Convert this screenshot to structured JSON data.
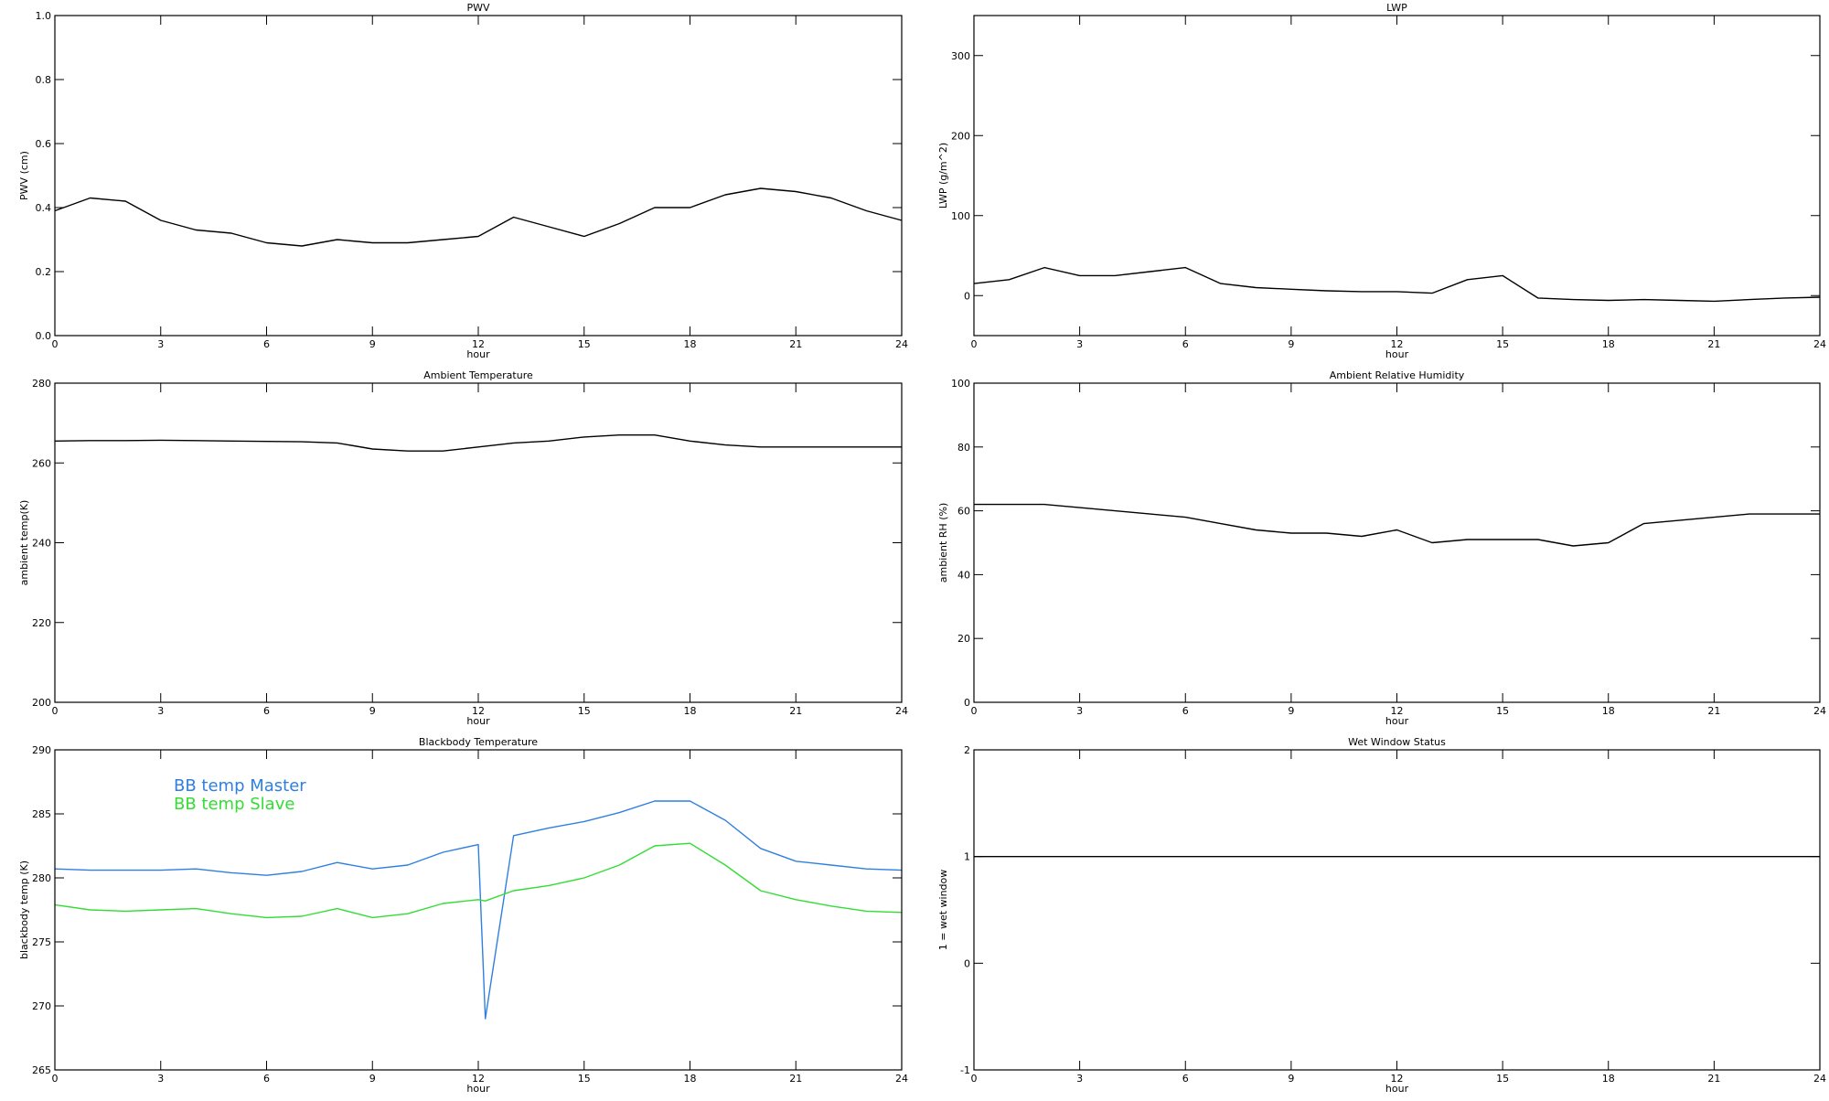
{
  "chart_data": [
    {
      "type": "line",
      "title": "PWV",
      "xlabel": "hour",
      "ylabel": "PWV (cm)",
      "xlim": [
        0,
        24
      ],
      "xticks": [
        0,
        3,
        6,
        9,
        12,
        15,
        18,
        21,
        24
      ],
      "ylim": [
        0,
        1
      ],
      "yticks": [
        {
          "value": 0,
          "label": "0.0"
        },
        0.2,
        0.4,
        0.6,
        0.8,
        {
          "value": 1,
          "label": "1.0"
        }
      ],
      "x": [
        0,
        1,
        2,
        3,
        4,
        5,
        6,
        7,
        8,
        9,
        10,
        11,
        12,
        13,
        14,
        15,
        16,
        17,
        18,
        19,
        20,
        21,
        22,
        23,
        24
      ],
      "series": [
        {
          "color": "#000000",
          "values": [
            0.39,
            0.43,
            0.42,
            0.36,
            0.33,
            0.32,
            0.29,
            0.28,
            0.3,
            0.29,
            0.29,
            0.3,
            0.31,
            0.37,
            0.34,
            0.31,
            0.35,
            0.4,
            0.4,
            0.44,
            0.46,
            0.45,
            0.43,
            0.39,
            0.36
          ]
        }
      ]
    },
    {
      "type": "line",
      "title": "LWP",
      "xlabel": "hour",
      "ylabel": "LWP (g/m^2)",
      "xlim": [
        0,
        24
      ],
      "xticks": [
        0,
        3,
        6,
        9,
        12,
        15,
        18,
        21,
        24
      ],
      "ylim": [
        -50,
        350
      ],
      "yticks": [
        0,
        100,
        200,
        300
      ],
      "x": [
        0,
        1,
        2,
        3,
        4,
        5,
        6,
        7,
        8,
        9,
        10,
        11,
        12,
        13,
        14,
        15,
        16,
        17,
        18,
        19,
        20,
        21,
        22,
        23,
        24
      ],
      "series": [
        {
          "color": "#000000",
          "values": [
            15,
            20,
            35,
            25,
            25,
            30,
            35,
            15,
            10,
            8,
            6,
            5,
            5,
            3,
            20,
            25,
            -3,
            -5,
            -6,
            -5,
            -6,
            -7,
            -5,
            -3,
            -2
          ]
        }
      ]
    },
    {
      "type": "line",
      "title": "Ambient Temperature",
      "xlabel": "hour",
      "ylabel": "ambient temp(K)",
      "xlim": [
        0,
        24
      ],
      "xticks": [
        0,
        3,
        6,
        9,
        12,
        15,
        18,
        21,
        24
      ],
      "ylim": [
        200,
        280
      ],
      "yticks": [
        200,
        220,
        240,
        260,
        280
      ],
      "x": [
        0,
        1,
        2,
        3,
        4,
        5,
        6,
        7,
        8,
        9,
        10,
        11,
        12,
        13,
        14,
        15,
        16,
        17,
        18,
        19,
        20,
        21,
        22,
        23,
        24
      ],
      "series": [
        {
          "color": "#000000",
          "values": [
            265.5,
            265.6,
            265.6,
            265.7,
            265.6,
            265.5,
            265.4,
            265.3,
            265,
            263.5,
            263,
            263,
            264,
            265,
            265.5,
            266.5,
            267,
            267,
            265.5,
            264.5,
            264,
            264,
            264,
            264,
            264
          ]
        }
      ]
    },
    {
      "type": "line",
      "title": "Ambient Relative Humidity",
      "xlabel": "hour",
      "ylabel": "ambient RH (%)",
      "xlim": [
        0,
        24
      ],
      "xticks": [
        0,
        3,
        6,
        9,
        12,
        15,
        18,
        21,
        24
      ],
      "ylim": [
        0,
        100
      ],
      "yticks": [
        0,
        20,
        40,
        60,
        80,
        100
      ],
      "x": [
        0,
        1,
        2,
        3,
        4,
        5,
        6,
        7,
        8,
        9,
        10,
        11,
        12,
        13,
        14,
        15,
        16,
        17,
        18,
        19,
        20,
        21,
        22,
        23,
        24
      ],
      "series": [
        {
          "color": "#000000",
          "values": [
            62,
            62,
            62,
            61,
            60,
            59,
            58,
            56,
            54,
            53,
            53,
            52,
            54,
            50,
            51,
            51,
            51,
            49,
            50,
            56,
            57,
            58,
            59,
            59,
            59
          ]
        }
      ]
    },
    {
      "type": "line",
      "title": "Blackbody Temperature",
      "xlabel": "hour",
      "ylabel": "blackbody temp (K)",
      "xlim": [
        0,
        24
      ],
      "xticks": [
        0,
        3,
        6,
        9,
        12,
        15,
        18,
        21,
        24
      ],
      "ylim": [
        265,
        290
      ],
      "yticks": [
        265,
        270,
        275,
        280,
        285,
        290
      ],
      "x": [
        0,
        1,
        2,
        3,
        4,
        5,
        6,
        7,
        8,
        9,
        10,
        11,
        12,
        12.2,
        13,
        14,
        15,
        16,
        17,
        18,
        19,
        20,
        21,
        22,
        23,
        24
      ],
      "series": [
        {
          "name": "BB temp Master",
          "color": "#2f7fe0",
          "values": [
            280.7,
            280.6,
            280.6,
            280.6,
            280.7,
            280.4,
            280.2,
            280.5,
            281.2,
            280.7,
            281,
            282,
            282.6,
            269,
            283.3,
            283.9,
            284.4,
            285.1,
            286,
            286,
            284.5,
            282.3,
            281.3,
            281,
            280.7,
            280.6
          ]
        },
        {
          "name": "BB temp Slave",
          "color": "#33dd33",
          "values": [
            277.9,
            277.5,
            277.4,
            277.5,
            277.6,
            277.2,
            276.9,
            277,
            277.6,
            276.9,
            277.2,
            278,
            278.3,
            278.2,
            279,
            279.4,
            280,
            281,
            282.5,
            282.7,
            281,
            279,
            278.3,
            277.8,
            277.4,
            277.3
          ]
        }
      ]
    },
    {
      "type": "line",
      "title": "Wet Window Status",
      "xlabel": "hour",
      "ylabel": "1 = wet window",
      "xlim": [
        0,
        24
      ],
      "xticks": [
        0,
        3,
        6,
        9,
        12,
        15,
        18,
        21,
        24
      ],
      "ylim": [
        -1,
        2
      ],
      "yticks": [
        -1,
        0,
        1,
        2
      ],
      "x": [
        0,
        24
      ],
      "series": [
        {
          "color": "#000000",
          "values": [
            1,
            1
          ]
        }
      ]
    }
  ]
}
